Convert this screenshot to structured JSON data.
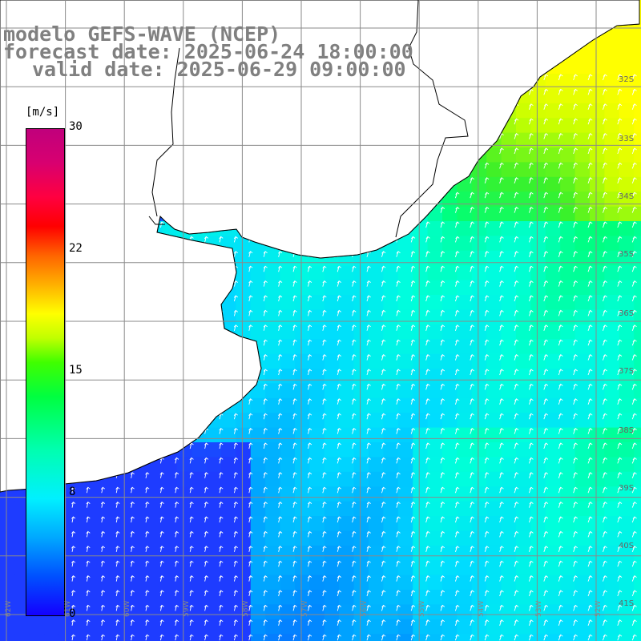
{
  "header": {
    "model": "modelo GEFS-WAVE (NCEP)",
    "forecast": "forecast date: 2025-06-24 18:00:00",
    "valid": "valid date: 2025-06-29 09:00:00"
  },
  "legend": {
    "unit": "[m/s]",
    "ticks": [
      "30",
      "22",
      "15",
      "8",
      "0"
    ],
    "colors": [
      "#1400ff",
      "#00a8ff",
      "#00f0ff",
      "#00ff40",
      "#ffff00",
      "#ff6400",
      "#ff0000",
      "#c0007c"
    ]
  },
  "lat_labels": [
    "32S",
    "33S",
    "34S",
    "35S",
    "36S",
    "37S",
    "38S",
    "39S",
    "40S",
    "41S"
  ],
  "lon_labels": [
    "62W",
    "61W",
    "60W",
    "59W",
    "58W",
    "57W",
    "56W",
    "55W",
    "54W",
    "53W",
    "52W"
  ],
  "map": {
    "land_color": "#ffffff",
    "grid_color": "#8a8a8a",
    "arrow_color": "#ffffff"
  }
}
